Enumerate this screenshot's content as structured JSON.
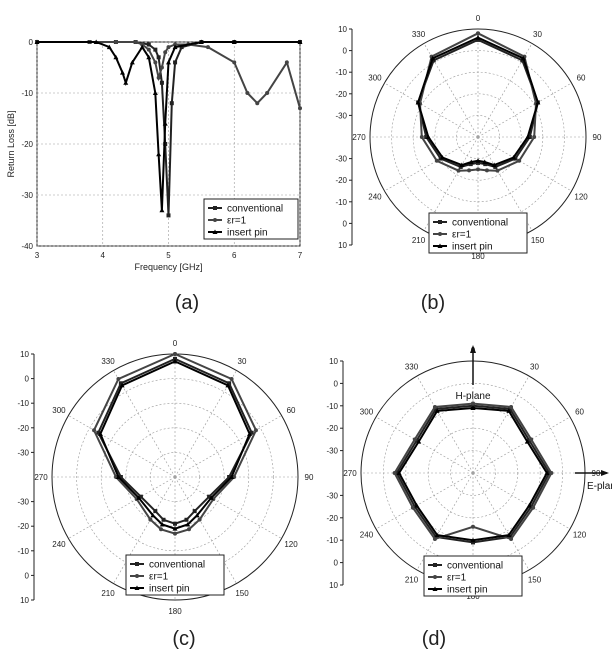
{
  "panels": [
    {
      "label": "(a)"
    },
    {
      "label": "(b)"
    },
    {
      "label": "(c)"
    },
    {
      "label": "(d)"
    }
  ],
  "legend": [
    "conventional",
    "εr=1",
    "insert pin"
  ],
  "chart_data": [
    {
      "type": "line",
      "panel": "(a)",
      "xlabel": "Frequency [GHz]",
      "ylabel": "Return Loss [dB]",
      "xlim": [
        3,
        7
      ],
      "ylim": [
        -40,
        0
      ],
      "xticks": [
        3,
        4,
        5,
        6,
        7
      ],
      "yticks": [
        0,
        -10,
        -20,
        -30,
        -40
      ],
      "grid": true,
      "legend_position": "bottom-right",
      "series": [
        {
          "name": "conventional",
          "x": [
            3,
            3.8,
            4.2,
            4.5,
            4.7,
            4.8,
            4.85,
            4.9,
            4.95,
            5.0,
            5.05,
            5.1,
            5.2,
            5.5,
            6.0,
            7.0
          ],
          "y": [
            0,
            0,
            0,
            0,
            -0.5,
            -1.5,
            -3,
            -8,
            -20,
            -34,
            -12,
            -4,
            -1,
            0,
            0,
            0
          ]
        },
        {
          "name": "εr=1",
          "x": [
            3,
            3.8,
            4.2,
            4.5,
            4.6,
            4.7,
            4.8,
            4.85,
            4.9,
            4.95,
            5.0,
            5.1,
            5.3,
            5.6,
            6.0,
            6.2,
            6.35,
            6.5,
            6.8,
            7.0
          ],
          "y": [
            0,
            0,
            0,
            0,
            -0.5,
            -1.5,
            -4,
            -7,
            -5,
            -2,
            -1,
            -0.5,
            -0.5,
            -1,
            -4,
            -10,
            -12,
            -10,
            -4,
            -13
          ]
        },
        {
          "name": "insert pin",
          "x": [
            3,
            3.9,
            4.1,
            4.2,
            4.3,
            4.35,
            4.45,
            4.6,
            4.7,
            4.8,
            4.85,
            4.9,
            4.95,
            5.0,
            5.1,
            5.5,
            6.0,
            7.0
          ],
          "y": [
            0,
            0,
            -1,
            -3,
            -6,
            -8,
            -4,
            -1,
            -3,
            -10,
            -22,
            -33,
            -16,
            -4,
            -1,
            0,
            0,
            0
          ]
        }
      ]
    },
    {
      "type": "polar",
      "panel": "(b)",
      "rlim": [
        -40,
        10
      ],
      "rticks": [
        10,
        0,
        -10,
        -20,
        -30
      ],
      "angle_ticks": [
        0,
        30,
        60,
        90,
        120,
        150,
        180,
        210,
        240,
        270,
        300,
        330
      ],
      "legend_position": "bottom",
      "series": [
        {
          "name": "conventional",
          "theta": [
            0,
            30,
            60,
            90,
            120,
            150,
            165,
            180,
            195,
            210,
            240,
            270,
            300,
            330,
            360
          ],
          "r": [
            5,
            1,
            -8,
            -16,
            -20,
            -24,
            -27,
            -28,
            -27,
            -24,
            -20,
            -16,
            -8,
            1,
            5
          ]
        },
        {
          "name": "εr=1",
          "theta": [
            0,
            30,
            60,
            90,
            120,
            150,
            165,
            180,
            195,
            210,
            240,
            270,
            300,
            330,
            360
          ],
          "r": [
            8,
            3,
            -9,
            -14,
            -18,
            -22,
            -24,
            -25,
            -24,
            -22,
            -18,
            -14,
            -9,
            3,
            8
          ]
        },
        {
          "name": "insert pin",
          "theta": [
            0,
            30,
            60,
            90,
            120,
            150,
            165,
            180,
            195,
            210,
            240,
            270,
            300,
            330,
            360
          ],
          "r": [
            6,
            2,
            -8,
            -17,
            -21,
            -25,
            -28,
            -29,
            -28,
            -25,
            -21,
            -17,
            -8,
            2,
            6
          ]
        }
      ]
    },
    {
      "type": "polar",
      "panel": "(c)",
      "rlim": [
        -40,
        10
      ],
      "rticks": [
        10,
        0,
        -10,
        -20,
        -30
      ],
      "angle_ticks": [
        0,
        30,
        60,
        90,
        120,
        150,
        180,
        210,
        240,
        270,
        300,
        330
      ],
      "legend_position": "bottom",
      "series": [
        {
          "name": "conventional",
          "theta": [
            0,
            30,
            60,
            90,
            120,
            150,
            165,
            180,
            195,
            210,
            240,
            270,
            300,
            330,
            360
          ],
          "r": [
            8,
            4,
            -4,
            -18,
            -24,
            -24,
            -22,
            -21,
            -22,
            -24,
            -24,
            -18,
            -4,
            4,
            8
          ]
        },
        {
          "name": "εr=1",
          "theta": [
            0,
            30,
            60,
            90,
            120,
            150,
            165,
            180,
            195,
            210,
            240,
            270,
            300,
            330,
            360
          ],
          "r": [
            10,
            6,
            -2,
            -16,
            -22,
            -20,
            -18,
            -17,
            -18,
            -20,
            -22,
            -16,
            -2,
            6,
            10
          ]
        },
        {
          "name": "insert pin",
          "theta": [
            0,
            30,
            60,
            90,
            120,
            150,
            165,
            180,
            195,
            210,
            240,
            270,
            300,
            330,
            360
          ],
          "r": [
            7,
            3,
            -5,
            -17,
            -23,
            -22,
            -20,
            -19,
            -20,
            -22,
            -23,
            -17,
            -5,
            3,
            7
          ]
        }
      ]
    },
    {
      "type": "polar",
      "panel": "(d)",
      "rlim": [
        -40,
        10
      ],
      "rticks": [
        10,
        0,
        -10,
        -20,
        -30
      ],
      "angle_ticks": [
        0,
        30,
        60,
        90,
        120,
        150,
        180,
        210,
        240,
        270,
        300,
        330
      ],
      "annotations": [
        "H-plane",
        "E-plane"
      ],
      "legend_position": "bottom",
      "series": [
        {
          "name": "conventional",
          "theta": [
            0,
            30,
            60,
            90,
            120,
            150,
            180,
            210,
            240,
            270,
            300,
            330,
            360
          ],
          "r": [
            -10,
            -7,
            -11,
            -6,
            -10,
            -7,
            -9,
            -7,
            -10,
            -6,
            -11,
            -7,
            -10
          ]
        },
        {
          "name": "εr=1",
          "theta": [
            0,
            30,
            60,
            90,
            120,
            150,
            180,
            210,
            240,
            270,
            300,
            330,
            360
          ],
          "r": [
            -9,
            -6,
            -10,
            -5,
            -9,
            -6,
            -16,
            -6,
            -9,
            -5,
            -10,
            -6,
            -9
          ]
        },
        {
          "name": "insert pin",
          "theta": [
            0,
            30,
            60,
            90,
            120,
            150,
            180,
            210,
            240,
            270,
            300,
            330,
            360
          ],
          "r": [
            -11,
            -8,
            -12,
            -7,
            -11,
            -8,
            -10,
            -8,
            -11,
            -7,
            -12,
            -8,
            -11
          ]
        }
      ]
    }
  ]
}
